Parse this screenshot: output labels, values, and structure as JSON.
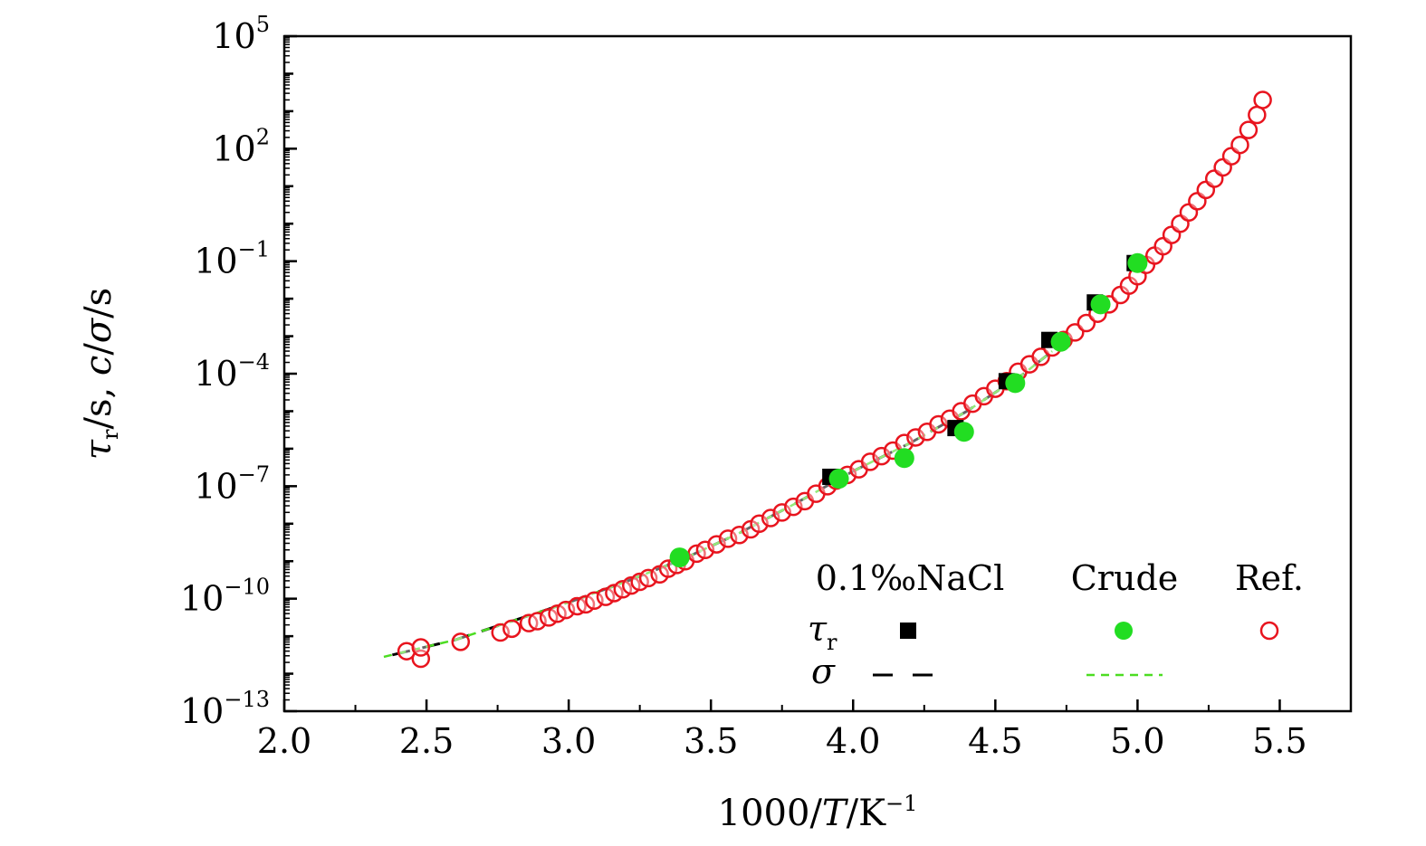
{
  "chart_data": {
    "type": "scatter",
    "xlabel": "1000/T/K⁻¹",
    "xlabel_parts": {
      "num": "1000/",
      "var": "T",
      "unit": "/K",
      "exp": "−1"
    },
    "ylabel": "τr/s, c/σ/s",
    "ylabel_parts": {
      "tau": "τ",
      "sub": "r",
      "rest1": "/s, ",
      "c": "c",
      "slash": "/",
      "sigma": "σ",
      "rest2": "/s"
    },
    "x_range": [
      2.0,
      5.75
    ],
    "y_log_range": [
      -13,
      5
    ],
    "x_ticks": [
      "2.0",
      "2.5",
      "3.0",
      "3.5",
      "4.0",
      "4.5",
      "5.0",
      "5.5"
    ],
    "x_tick_values": [
      2.0,
      2.5,
      3.0,
      3.5,
      4.0,
      4.5,
      5.0,
      5.5
    ],
    "y_ticks": [
      {
        "base": "10",
        "exp": "5",
        "log": 5
      },
      {
        "base": "10",
        "exp": "2",
        "log": 2
      },
      {
        "base": "10",
        "exp": "−1",
        "log": -1
      },
      {
        "base": "10",
        "exp": "−4",
        "log": -4
      },
      {
        "base": "10",
        "exp": "−7",
        "log": -7
      },
      {
        "base": "10",
        "exp": "−10",
        "log": -10
      },
      {
        "base": "10",
        "exp": "−13",
        "log": -13
      }
    ],
    "legend": {
      "col_headers": [
        "0.1‰NaCl",
        "Crude",
        "Ref."
      ],
      "row_tau_symbol": "τ",
      "row_tau_sub": "r",
      "row_sigma_symbol": "σ"
    },
    "series": [
      {
        "name": "0.1‰NaCl τr",
        "marker": "square",
        "color": "#000000",
        "x": [
          3.92,
          4.36,
          4.54,
          4.69,
          4.85,
          4.99
        ],
        "log_y": [
          -6.75,
          -5.45,
          -4.2,
          -3.1,
          -2.1,
          -1.05
        ]
      },
      {
        "name": "Crude τr",
        "marker": "filled-circle",
        "color": "#22dd22",
        "x": [
          3.39,
          3.95,
          4.18,
          4.39,
          4.57,
          4.73,
          4.87,
          5.0
        ],
        "log_y": [
          -8.9,
          -6.8,
          -6.25,
          -5.55,
          -4.25,
          -3.15,
          -2.15,
          -1.05
        ]
      },
      {
        "name": "Ref. τr",
        "marker": "open-circle",
        "color": "#e8141e",
        "x": [
          2.43,
          2.48,
          2.48,
          2.62,
          2.76,
          2.8,
          2.86,
          2.89,
          2.93,
          2.96,
          2.99,
          3.03,
          3.06,
          3.09,
          3.13,
          3.16,
          3.19,
          3.22,
          3.25,
          3.28,
          3.32,
          3.35,
          3.38,
          3.41,
          3.45,
          3.48,
          3.52,
          3.56,
          3.6,
          3.64,
          3.67,
          3.71,
          3.75,
          3.79,
          3.83,
          3.87,
          3.91,
          3.94,
          3.98,
          4.02,
          4.06,
          4.1,
          4.14,
          4.18,
          4.22,
          4.26,
          4.3,
          4.34,
          4.38,
          4.42,
          4.46,
          4.5,
          4.54,
          4.58,
          4.62,
          4.66,
          4.7,
          4.74,
          4.78,
          4.82,
          4.86,
          4.9,
          4.94,
          4.97,
          5.0,
          5.03,
          5.06,
          5.09,
          5.12,
          5.15,
          5.18,
          5.21,
          5.24,
          5.27,
          5.3,
          5.33,
          5.36,
          5.39,
          5.42,
          5.44
        ],
        "log_y": [
          -11.4,
          -11.6,
          -11.3,
          -11.15,
          -10.9,
          -10.8,
          -10.65,
          -10.6,
          -10.5,
          -10.4,
          -10.3,
          -10.2,
          -10.15,
          -10.05,
          -9.95,
          -9.85,
          -9.75,
          -9.65,
          -9.55,
          -9.45,
          -9.35,
          -9.2,
          -9.1,
          -9.0,
          -8.8,
          -8.7,
          -8.55,
          -8.4,
          -8.3,
          -8.15,
          -8.0,
          -7.85,
          -7.7,
          -7.55,
          -7.4,
          -7.2,
          -7.0,
          -6.85,
          -6.7,
          -6.55,
          -6.35,
          -6.2,
          -6.05,
          -5.85,
          -5.7,
          -5.55,
          -5.35,
          -5.2,
          -5.0,
          -4.8,
          -4.6,
          -4.4,
          -4.2,
          -3.95,
          -3.75,
          -3.55,
          -3.3,
          -3.1,
          -2.9,
          -2.65,
          -2.4,
          -2.15,
          -1.9,
          -1.65,
          -1.4,
          -1.1,
          -0.85,
          -0.6,
          -0.3,
          0.0,
          0.3,
          0.6,
          0.9,
          1.2,
          1.5,
          1.8,
          2.1,
          2.5,
          2.9,
          3.3
        ]
      },
      {
        "name": "0.1‰NaCl σ",
        "line": "dashed",
        "color": "#000000",
        "x": [
          2.38,
          2.6,
          2.8,
          3.0,
          3.2,
          3.4,
          3.6,
          3.8,
          4.0,
          4.2,
          4.4,
          4.6,
          4.7
        ],
        "log_y": [
          -11.5,
          -11.1,
          -10.6,
          -10.1,
          -9.55,
          -8.95,
          -8.25,
          -7.45,
          -6.6,
          -5.85,
          -5.0,
          -4.0,
          -3.4
        ]
      },
      {
        "name": "Crude σ",
        "line": "dashed",
        "color": "#4cdd22",
        "x": [
          2.35,
          2.6,
          2.8,
          3.0,
          3.2,
          3.4,
          3.6,
          3.8,
          4.0,
          4.2,
          4.4,
          4.6,
          4.7
        ],
        "log_y": [
          -11.55,
          -11.1,
          -10.6,
          -10.1,
          -9.55,
          -8.95,
          -8.25,
          -7.45,
          -6.6,
          -5.85,
          -5.0,
          -4.0,
          -3.4
        ]
      }
    ]
  }
}
